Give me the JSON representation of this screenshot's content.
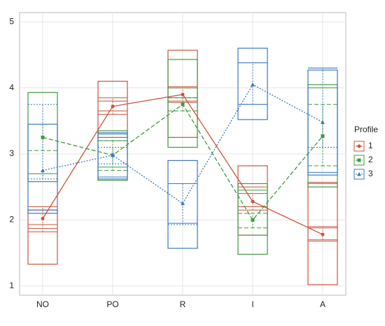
{
  "chart_data": {
    "type": "profile-box",
    "categories": [
      "NO",
      "PO",
      "R",
      "I",
      "A"
    ],
    "ylim": [
      0.86,
      5.14
    ],
    "yticks": [
      1,
      2,
      3,
      4,
      5
    ],
    "grid": true,
    "legend_title": "Profile",
    "legend": "right",
    "series": [
      {
        "name": "1",
        "color": "#c8553d",
        "linestyle": "solid",
        "marker": "circle",
        "values": [
          2.02,
          3.72,
          3.9,
          2.28,
          1.78
        ],
        "box_low": [
          1.33,
          3.25,
          3.25,
          1.77,
          1.02
        ],
        "box_high": [
          2.15,
          4.1,
          4.57,
          2.82,
          2.57
        ],
        "line_low": [
          1.87,
          3.65,
          3.8,
          2.2,
          1.68
        ],
        "line_high": [
          1.93,
          3.8,
          4.02,
          2.5,
          1.9
        ],
        "err_low": [
          1.82,
          3.6,
          3.78,
          2.15,
          1.7
        ],
        "err_high": [
          2.2,
          3.85,
          4.0,
          2.4,
          1.88
        ]
      },
      {
        "name": "2",
        "color": "#3f9a3f",
        "linestyle": "dashed",
        "marker": "square",
        "values": [
          3.25,
          2.98,
          3.75,
          2.0,
          3.27
        ],
        "box_low": [
          2.58,
          2.6,
          3.1,
          1.48,
          2.5
        ],
        "box_high": [
          3.93,
          3.35,
          4.43,
          2.55,
          4.05
        ],
        "line_low": [
          2.7,
          2.8,
          3.85,
          1.77,
          2.55
        ],
        "line_high": [
          3.45,
          3.2,
          4.0,
          2.45,
          4.0
        ],
        "err_low": [
          3.05,
          2.75,
          3.65,
          1.88,
          2.82
        ],
        "err_high": [
          3.45,
          3.2,
          3.85,
          2.1,
          3.75
        ]
      },
      {
        "name": "3",
        "color": "#3b78c2",
        "linestyle": "dotted",
        "marker": "triangle",
        "values": [
          2.75,
          2.98,
          2.25,
          4.05,
          3.48
        ],
        "box_low": [
          2.1,
          2.62,
          1.57,
          3.52,
          2.68
        ],
        "box_high": [
          3.45,
          3.32,
          2.9,
          4.6,
          4.27
        ],
        "line_low": [
          2.15,
          2.65,
          1.95,
          3.75,
          2.72
        ],
        "line_high": [
          3.45,
          3.3,
          2.55,
          4.38,
          4.3
        ],
        "err_low": [
          2.62,
          2.85,
          1.93,
          3.75,
          3.1
        ],
        "err_high": [
          3.75,
          3.1,
          2.55,
          4.38,
          4.3
        ]
      }
    ]
  }
}
